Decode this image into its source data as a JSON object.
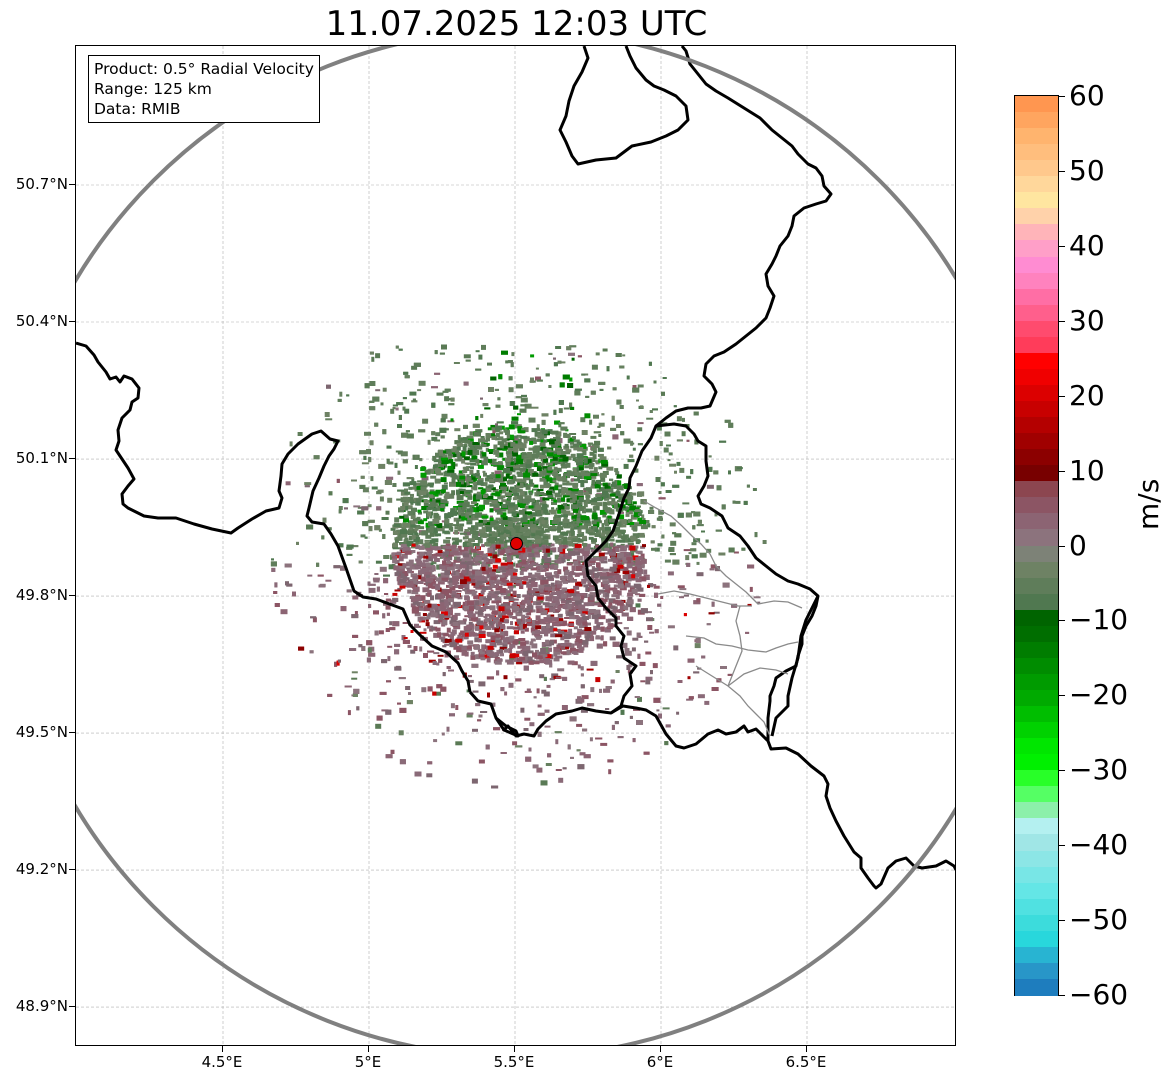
{
  "title": "11.07.2025 12:03 UTC",
  "info": {
    "product": "Product: 0.5° Radial Velocity",
    "range": "Range: 125 km",
    "data": "Data: RMIB"
  },
  "axes": {
    "lon_ticks": [
      {
        "value": 4.5,
        "label": "4.5°E"
      },
      {
        "value": 5.0,
        "label": "5°E"
      },
      {
        "value": 5.5,
        "label": "5.5°E"
      },
      {
        "value": 6.0,
        "label": "6°E"
      },
      {
        "value": 6.5,
        "label": "6.5°E"
      }
    ],
    "lat_ticks": [
      {
        "value": 50.7,
        "label": "50.7°N"
      },
      {
        "value": 50.4,
        "label": "50.4°N"
      },
      {
        "value": 50.1,
        "label": "50.1°N"
      },
      {
        "value": 49.8,
        "label": "49.8°N"
      },
      {
        "value": 49.5,
        "label": "49.5°N"
      },
      {
        "value": 49.2,
        "label": "49.2°N"
      },
      {
        "value": 48.9,
        "label": "48.9°N"
      }
    ],
    "lon_range": [
      4.0,
      7.0
    ],
    "lat_range": [
      48.8,
      51.0
    ],
    "grid": true
  },
  "radar": {
    "site": {
      "lon": 5.505,
      "lat": 49.915
    },
    "range_ring_color": "#808080",
    "site_color": "#e00000"
  },
  "colorbar": {
    "unit": "m/s",
    "min": -60,
    "max": 60,
    "ticks": [
      {
        "value": 60,
        "label": "60"
      },
      {
        "value": 50,
        "label": "50"
      },
      {
        "value": 40,
        "label": "40"
      },
      {
        "value": 30,
        "label": "30"
      },
      {
        "value": 20,
        "label": "20"
      },
      {
        "value": 10,
        "label": "10"
      },
      {
        "value": 0,
        "label": "0"
      },
      {
        "value": -10,
        "label": "−10"
      },
      {
        "value": -20,
        "label": "−20"
      },
      {
        "value": -30,
        "label": "−30"
      },
      {
        "value": -40,
        "label": "−40"
      },
      {
        "value": -50,
        "label": "−50"
      },
      {
        "value": -60,
        "label": "−60"
      }
    ],
    "colors_top_to_bottom": [
      "#ff9650",
      "#ffa55f",
      "#ffb46e",
      "#ffbe7d",
      "#ffc88c",
      "#ffd79b",
      "#ffe6a0",
      "#ffd2aa",
      "#ffb4b9",
      "#ff9fc8",
      "#ff8cd2",
      "#ff82be",
      "#ff6ea5",
      "#ff5f8c",
      "#ff4b6e",
      "#ff3c5a",
      "#ff0000",
      "#f00000",
      "#dc0000",
      "#c80000",
      "#b40000",
      "#a00000",
      "#8c0000",
      "#780000",
      "#8c4650",
      "#8c5564",
      "#8c6473",
      "#8c737d",
      "#7d8277",
      "#6e8264",
      "#5f7d5a",
      "#507850",
      "#006400",
      "#006e00",
      "#007d00",
      "#008c00",
      "#009b00",
      "#00aa00",
      "#00be00",
      "#00d200",
      "#00e600",
      "#00f000",
      "#28ff28",
      "#55ff64",
      "#8cf0aa",
      "#b4f0f0",
      "#a0e6e6",
      "#8ce6e6",
      "#78e6e6",
      "#64e6e6",
      "#50e1e1",
      "#3cdcdc",
      "#28d7dc",
      "#28b4d2",
      "#2896c8",
      "#1e7dbe"
    ]
  }
}
